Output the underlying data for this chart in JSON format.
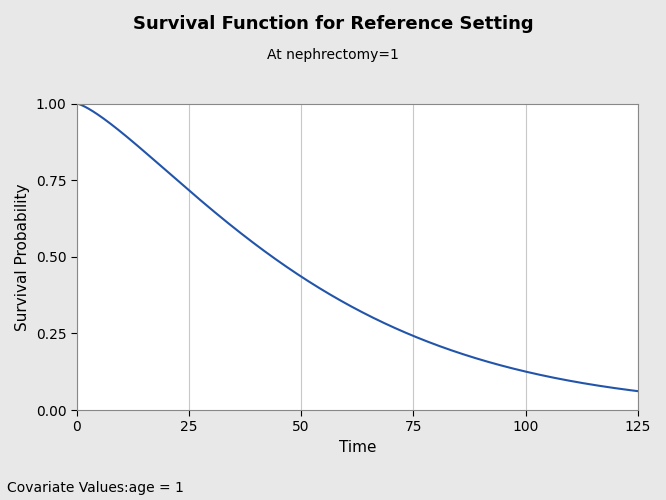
{
  "title": "Survival Function for Reference Setting",
  "subtitle": "At nephrectomy=1",
  "xlabel": "Time",
  "ylabel": "Survival Probability",
  "footnote": "Covariate Values:age = 1",
  "xlim": [
    0,
    125
  ],
  "ylim": [
    0,
    1.0
  ],
  "xticks": [
    0,
    25,
    50,
    75,
    100,
    125
  ],
  "yticks": [
    0.0,
    0.25,
    0.5,
    0.75,
    1.0
  ],
  "line_color": "#2255aa",
  "line_width": 1.5,
  "background_color": "#e8e8e8",
  "plot_bg_color": "#ffffff",
  "grid_color": "#c8c8c8",
  "weibull_scale": 57.5,
  "weibull_shape": 1.32,
  "title_fontsize": 13,
  "subtitle_fontsize": 10,
  "label_fontsize": 11,
  "tick_fontsize": 10,
  "footnote_fontsize": 10
}
